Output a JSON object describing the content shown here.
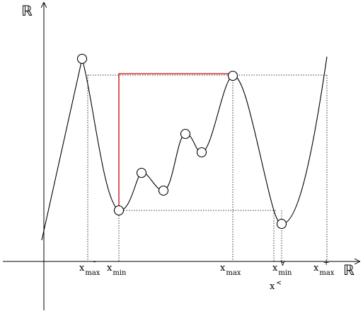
{
  "axes": {
    "y_label": "ℝ",
    "x_label": "ℝ"
  },
  "labels": {
    "xmax_minus": {
      "base": "x",
      "sub": "max",
      "sup": "-"
    },
    "xmin": {
      "base": "x",
      "sub": "min"
    },
    "xmax": {
      "base": "x",
      "sub": "max"
    },
    "xmin_forall": {
      "base": "x",
      "sub": "min",
      "sup": "∀"
    },
    "xmax_plus": {
      "base": "x",
      "sub": "max",
      "sup": "+"
    },
    "x_less": {
      "base": "x",
      "sup": "<"
    }
  },
  "colors": {
    "curve": "#000000",
    "guide": "#000000",
    "highlight": "#cc0000"
  }
}
